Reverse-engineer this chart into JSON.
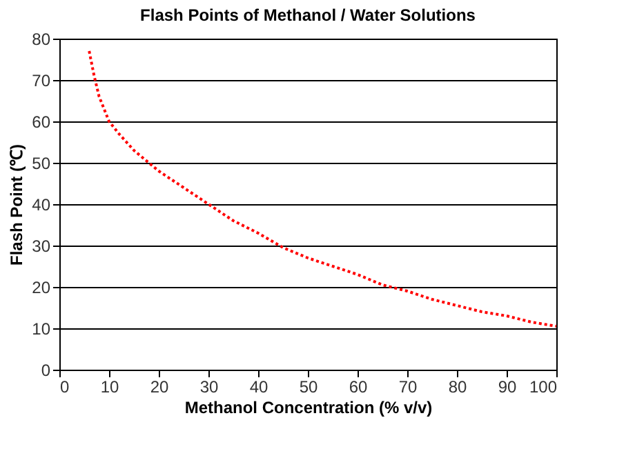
{
  "chart_data": {
    "type": "line",
    "title": "Flash Points of Methanol / Water Solutions",
    "xlabel": "Methanol Concentration (% v/v)",
    "ylabel": "Flash Point (℃)",
    "x": [
      6,
      7,
      8,
      10,
      12,
      15,
      17,
      20,
      25,
      30,
      35,
      40,
      45,
      50,
      55,
      60,
      65,
      70,
      75,
      80,
      85,
      90,
      95,
      100
    ],
    "series": [
      {
        "color": "#ff0000",
        "values": [
          77,
          71,
          66,
          60,
          57,
          53,
          51,
          48,
          44,
          40,
          36,
          33,
          29.5,
          27,
          25,
          23,
          20.5,
          19,
          17,
          15.5,
          14,
          13,
          11.5,
          10.5
        ]
      }
    ],
    "xlim": [
      0,
      100
    ],
    "xticks": [
      0,
      10,
      20,
      30,
      40,
      50,
      60,
      70,
      80,
      90,
      100
    ],
    "ylim": [
      0,
      80
    ],
    "yticks": [
      0,
      10,
      20,
      30,
      40,
      50,
      60,
      70,
      80
    ],
    "grid": "y",
    "line_style": "dotted",
    "marker": "none"
  }
}
